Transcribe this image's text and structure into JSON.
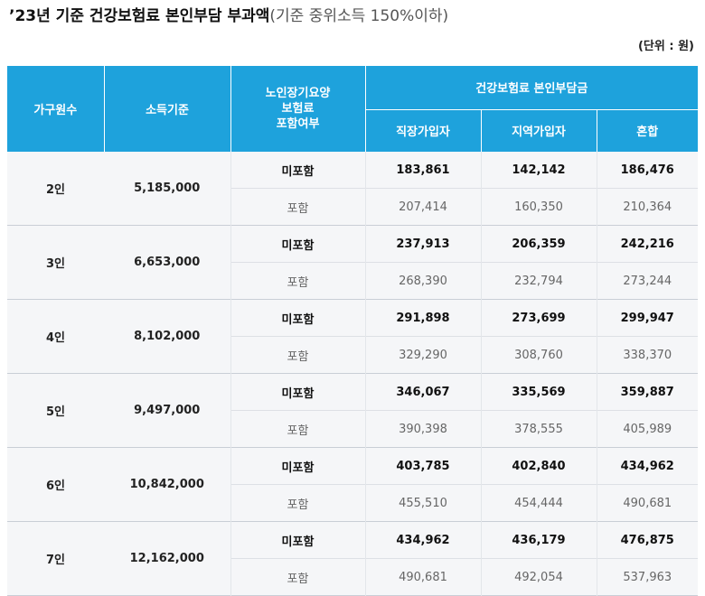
{
  "title": {
    "bold": "’23년 기준 건강보험료 본인부담 부과액",
    "light": "(기준 중위소득 150%이하)"
  },
  "unit": "(단위 : 원)",
  "headers": {
    "household": "가구원수",
    "income": "소득기준",
    "ltc": [
      "노인장기요양",
      "보험료",
      "포함여부"
    ],
    "group": "건강보험료 본인부담금",
    "employee": "직장가입자",
    "regional": "지역가입자",
    "mixed": "혼합"
  },
  "rows": [
    {
      "household": "2인",
      "income": "5,185,000",
      "excl": {
        "label": "미포함",
        "employee": "183,861",
        "regional": "142,142",
        "mixed": "186,476"
      },
      "incl": {
        "label": "포함",
        "employee": "207,414",
        "regional": "160,350",
        "mixed": "210,364"
      }
    },
    {
      "household": "3인",
      "income": "6,653,000",
      "excl": {
        "label": "미포함",
        "employee": "237,913",
        "regional": "206,359",
        "mixed": "242,216"
      },
      "incl": {
        "label": "포함",
        "employee": "268,390",
        "regional": "232,794",
        "mixed": "273,244"
      }
    },
    {
      "household": "4인",
      "income": "8,102,000",
      "excl": {
        "label": "미포함",
        "employee": "291,898",
        "regional": "273,699",
        "mixed": "299,947"
      },
      "incl": {
        "label": "포함",
        "employee": "329,290",
        "regional": "308,760",
        "mixed": "338,370"
      }
    },
    {
      "household": "5인",
      "income": "9,497,000",
      "excl": {
        "label": "미포함",
        "employee": "346,067",
        "regional": "335,569",
        "mixed": "359,887"
      },
      "incl": {
        "label": "포함",
        "employee": "390,398",
        "regional": "378,555",
        "mixed": "405,989"
      }
    },
    {
      "household": "6인",
      "income": "10,842,000",
      "excl": {
        "label": "미포함",
        "employee": "403,785",
        "regional": "402,840",
        "mixed": "434,962"
      },
      "incl": {
        "label": "포함",
        "employee": "455,510",
        "regional": "454,444",
        "mixed": "490,681"
      }
    },
    {
      "household": "7인",
      "income": "12,162,000",
      "excl": {
        "label": "미포함",
        "employee": "434,962",
        "regional": "436,179",
        "mixed": "476,875"
      },
      "incl": {
        "label": "포함",
        "employee": "490,681",
        "regional": "492,054",
        "mixed": "537,963"
      }
    }
  ]
}
